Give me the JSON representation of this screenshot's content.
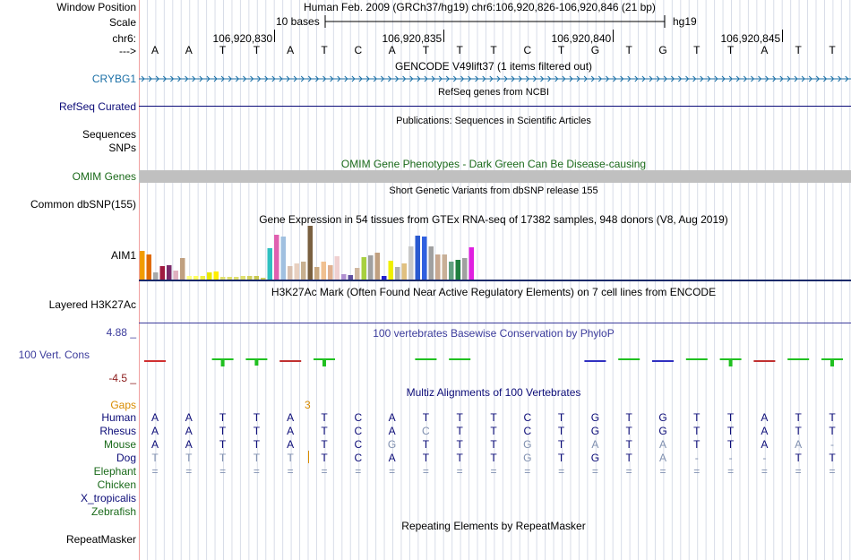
{
  "header": {
    "window_position_label": "Window Position",
    "assembly_position": "Human Feb. 2009 (GRCh37/hg19)   chr6:106,920,826-106,920,846 (21 bp)",
    "scale_label": "Scale",
    "scale_text": "10 bases",
    "scale_db": "hg19",
    "chrom_label": "chr6:",
    "chrom_ticks": [
      "106,920,830",
      "106,920,835",
      "106,920,840",
      "106,920,845"
    ],
    "strand_label": "--->",
    "bases": [
      "A",
      "A",
      "T",
      "T",
      "A",
      "T",
      "C",
      "A",
      "T",
      "T",
      "T",
      "C",
      "T",
      "G",
      "T",
      "G",
      "T",
      "T",
      "A",
      "T",
      "T"
    ]
  },
  "tracks": {
    "gencode_title": "GENCODE V49lift37 (1 items filtered out)",
    "gencode_gene": "CRYBG1",
    "refseq_title": "RefSeq genes from NCBI",
    "refseq_label": "RefSeq Curated",
    "pubs_title": "Publications: Sequences in Scientific Articles",
    "pubs_label_1": "Sequences",
    "pubs_label_2": "SNPs",
    "omim_title": "OMIM Gene Phenotypes - Dark Green Can Be Disease-causing",
    "omim_label": "OMIM Genes",
    "dbsnp_title": "Short Genetic Variants from dbSNP release 155",
    "dbsnp_label": "Common dbSNP(155)",
    "gtex_title": "Gene Expression in 54 tissues from GTEx RNA-seq of 17382 samples, 948 donors (V8, Aug 2019)",
    "gtex_label": "AIM1",
    "h3k27_title": "H3K27Ac Mark (Often Found Near Active Regulatory Elements) on 7 cell lines from ENCODE",
    "h3k27_label": "Layered H3K27Ac",
    "phylop_title": "100 vertebrates Basewise Conservation by PhyloP",
    "phylop_label": "100 Vert. Cons",
    "phylop_max": "4.88 _",
    "phylop_min": "-4.5 _",
    "multiz_title": "Multiz Alignments of 100 Vertebrates",
    "gaps_label": "Gaps",
    "gap_count": "3",
    "rmsk_title": "Repeating Elements by RepeatMasker",
    "rmsk_label": "RepeatMasker"
  },
  "colors": {
    "gencode": "#1a6fa6",
    "refseq": "#0c0c78",
    "omim": "#1a6a1a",
    "omim_bar": "#c0c0c0",
    "phylop_text": "#3c3c9c",
    "phylop_min": "#8b1a1a",
    "gaps": "#d98c00",
    "species_dark": "#0c0c78",
    "species_green": "#1a6a1a"
  },
  "gtex_bars": {
    "heights": [
      32,
      28,
      8,
      15,
      16,
      10,
      24,
      4,
      4,
      4,
      8,
      9,
      3,
      3,
      3,
      4,
      4,
      4,
      2,
      35,
      50,
      48,
      15,
      18,
      20,
      60,
      14,
      20,
      16,
      26,
      6,
      5,
      13,
      25,
      27,
      30,
      4,
      21,
      14,
      18,
      37,
      49,
      48,
      37,
      28,
      28,
      20,
      22,
      24,
      36
    ],
    "colors": [
      "#f29c00",
      "#e06a00",
      "#a8a8a8",
      "#a01a40",
      "#7a2a6a",
      "#e0b0c0",
      "#c0a080",
      "#ffff80",
      "#ffff60",
      "#f0f040",
      "#e8e800",
      "#ffee00",
      "#e0e070",
      "#e0e070",
      "#e0e070",
      "#e0e070",
      "#d0d060",
      "#c8c850",
      "#d0d060",
      "#30c0c0",
      "#e060b0",
      "#a0c0e0",
      "#d8c0b0",
      "#e8d0c0",
      "#c8b090",
      "#7a6040",
      "#c8a880",
      "#f0c090",
      "#e0b090",
      "#f0d0d0",
      "#b090d0",
      "#6050a0",
      "#d0b8a0",
      "#a8d040",
      "#a0a0a0",
      "#c0a080",
      "#2020d0",
      "#f0f000",
      "#b0b0b0",
      "#e0c080",
      "#c8c8c8",
      "#2a5ad0",
      "#3060e0",
      "#a0a0a0",
      "#c8a890",
      "#c8b098",
      "#60a080",
      "#208040",
      "#a0a0a0",
      "#e020e0"
    ]
  },
  "multiz": {
    "species": [
      {
        "name": "Human",
        "color": "dark",
        "bases": [
          "A",
          "A",
          "T",
          "T",
          "A",
          "T",
          "C",
          "A",
          "T",
          "T",
          "T",
          "C",
          "T",
          "G",
          "T",
          "G",
          "T",
          "T",
          "A",
          "T",
          "T"
        ]
      },
      {
        "name": "Rhesus",
        "color": "dark",
        "bases": [
          "A",
          "A",
          "T",
          "T",
          "A",
          "T",
          "C",
          "A",
          "C",
          "T",
          "T",
          "C",
          "T",
          "G",
          "T",
          "G",
          "T",
          "T",
          "A",
          "T",
          "T"
        ]
      },
      {
        "name": "Mouse",
        "color": "green",
        "bases": [
          "A",
          "A",
          "T",
          "T",
          "A",
          "T",
          "C",
          "G",
          "T",
          "T",
          "T",
          "G",
          "T",
          "A",
          "T",
          "A",
          "T",
          "T",
          "A",
          "A",
          "-"
        ]
      },
      {
        "name": "Dog",
        "color": "dark",
        "bases": [
          "T",
          "T",
          "T",
          "T",
          "T",
          "T",
          "C",
          "A",
          "T",
          "T",
          "T",
          "G",
          "T",
          "G",
          "T",
          "A",
          "-",
          "-",
          "-",
          "T",
          "T"
        ]
      },
      {
        "name": "Elephant",
        "color": "green",
        "bases": [
          "=",
          "=",
          "=",
          "=",
          "=",
          "=",
          "=",
          "=",
          "=",
          "=",
          "=",
          "=",
          "=",
          "=",
          "=",
          "=",
          "=",
          "=",
          "=",
          "=",
          "="
        ]
      },
      {
        "name": "Chicken",
        "color": "green",
        "bases": []
      },
      {
        "name": "X_tropicalis",
        "color": "dark",
        "bases": []
      },
      {
        "name": "Zebrafish",
        "color": "green",
        "bases": []
      }
    ],
    "dim": [
      [
        0,
        0,
        0,
        0,
        0,
        0,
        0,
        0,
        0,
        0,
        0,
        0,
        0,
        0,
        0,
        0,
        0,
        0,
        0,
        0,
        0
      ],
      [
        0,
        0,
        0,
        0,
        0,
        0,
        0,
        0,
        1,
        0,
        0,
        0,
        0,
        0,
        0,
        0,
        0,
        0,
        0,
        0,
        0
      ],
      [
        0,
        0,
        0,
        0,
        0,
        0,
        0,
        1,
        0,
        0,
        0,
        1,
        0,
        1,
        0,
        1,
        0,
        0,
        0,
        1,
        1
      ],
      [
        1,
        1,
        1,
        1,
        1,
        0,
        0,
        0,
        0,
        0,
        0,
        1,
        0,
        0,
        0,
        1,
        1,
        1,
        1,
        0,
        0
      ],
      [
        1,
        1,
        1,
        1,
        1,
        1,
        1,
        1,
        1,
        1,
        1,
        1,
        1,
        1,
        1,
        1,
        1,
        1,
        1,
        1,
        1
      ]
    ]
  }
}
